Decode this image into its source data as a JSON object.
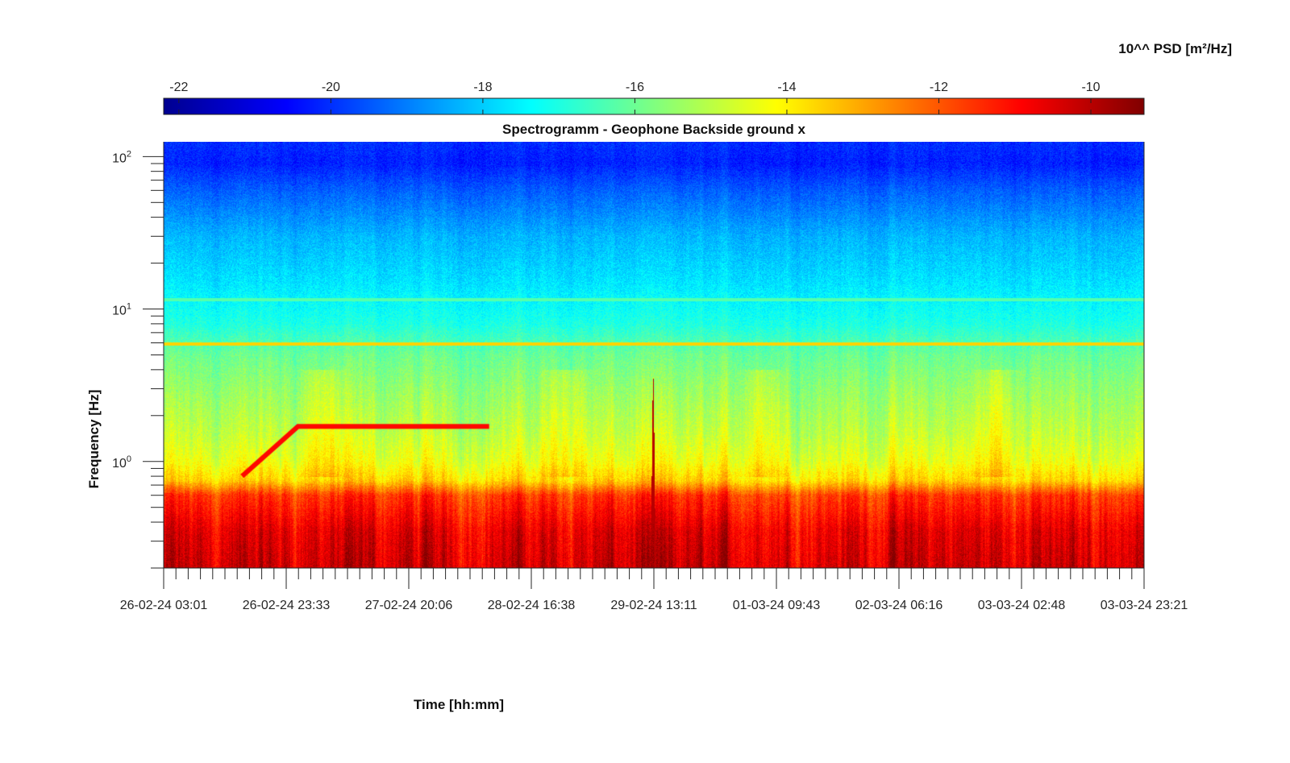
{
  "chart_data": {
    "type": "heatmap",
    "title": "Spectrogramm - Geophone Backside ground x",
    "xlabel": "Time [hh:mm]",
    "ylabel": "Frequency [Hz]",
    "colorbar": {
      "label": "10^^ PSD [m²/Hz]",
      "range": [
        -22.2,
        -9.3
      ],
      "ticks": [
        -22,
        -20,
        -18,
        -16,
        -14,
        -12,
        -10
      ],
      "tick_labels": [
        "-22",
        "-20",
        "-18",
        "-16",
        "-14",
        "-12",
        "-10"
      ],
      "colormap": "jet",
      "position": "top"
    },
    "x_axis": {
      "scale": "linear-time",
      "range": [
        "26-02-24 03:01",
        "03-03-24 23:21"
      ],
      "tick_labels": [
        "26-02-24 03:01",
        "26-02-24 23:33",
        "27-02-24 20:06",
        "28-02-24 16:38",
        "29-02-24 13:11",
        "01-03-24 09:43",
        "02-03-24 06:16",
        "03-03-24 02:48",
        "03-03-24 23:21"
      ]
    },
    "y_axis": {
      "scale": "log",
      "range": [
        0.2,
        125
      ],
      "ticks": [
        1,
        10,
        100
      ],
      "tick_labels": [
        {
          "base": "10",
          "exp": "0"
        },
        {
          "base": "10",
          "exp": "1"
        },
        {
          "base": "10",
          "exp": "2"
        }
      ]
    },
    "psd_profile": [
      {
        "f": 0.2,
        "v": -10.3
      },
      {
        "f": 0.35,
        "v": -10.6
      },
      {
        "f": 0.6,
        "v": -11.6
      },
      {
        "f": 0.75,
        "v": -13.6
      },
      {
        "f": 1.0,
        "v": -14.4
      },
      {
        "f": 1.5,
        "v": -14.9
      },
      {
        "f": 3.0,
        "v": -15.5
      },
      {
        "f": 5.0,
        "v": -16.0
      },
      {
        "f": 8.0,
        "v": -17.0
      },
      {
        "f": 15.0,
        "v": -17.7
      },
      {
        "f": 30.0,
        "v": -18.3
      },
      {
        "f": 60.0,
        "v": -19.4
      },
      {
        "f": 90.0,
        "v": -20.2
      },
      {
        "f": 125.0,
        "v": -20.0
      }
    ],
    "features": [
      {
        "kind": "tone",
        "freq": 5.9,
        "psd": -13.6,
        "t_start": 0.0,
        "t_end": 1.0
      },
      {
        "kind": "tone",
        "freq": 11.5,
        "psd": -16.3,
        "t_start": 0.0,
        "t_end": 1.0
      },
      {
        "kind": "sweep",
        "psd": -11.0,
        "points": [
          {
            "t": 0.08,
            "f": 0.8
          },
          {
            "t": 0.137,
            "f": 1.7
          },
          {
            "t": 0.332,
            "f": 1.7
          }
        ]
      },
      {
        "kind": "event",
        "t": 0.499,
        "f_min": 0.2,
        "f_max": 3.5,
        "psd": -10.0
      },
      {
        "kind": "burst",
        "t": 0.163,
        "psd": -13.0
      },
      {
        "kind": "burst",
        "t": 0.41,
        "psd": -13.0
      },
      {
        "kind": "burst",
        "t": 0.61,
        "psd": -13.0
      },
      {
        "kind": "burst",
        "t": 0.85,
        "psd": -13.0
      }
    ]
  }
}
